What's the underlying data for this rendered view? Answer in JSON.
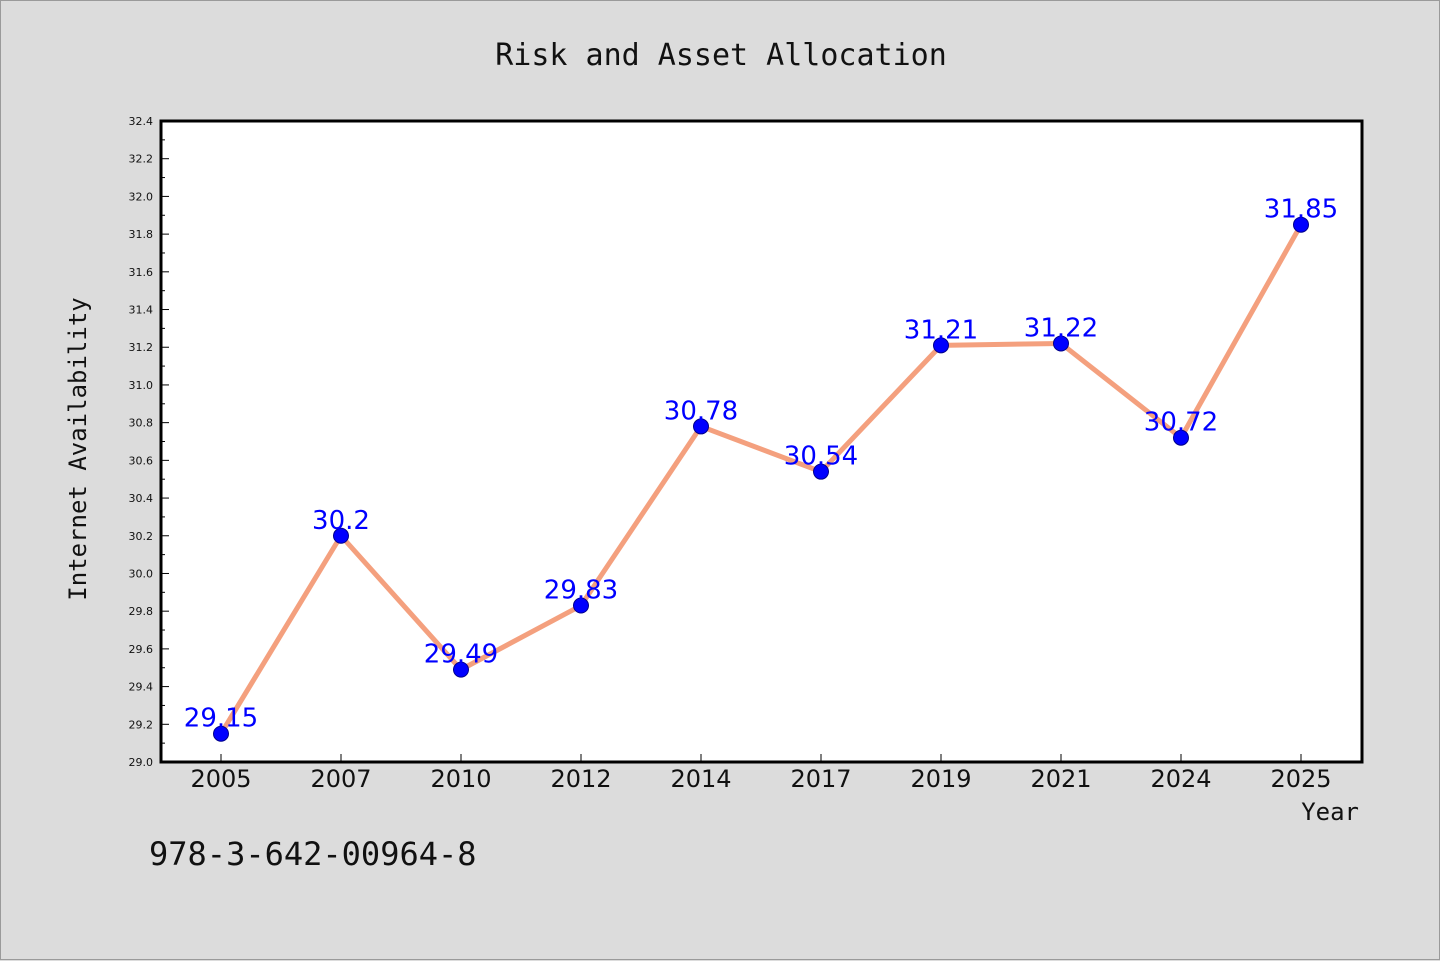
{
  "footer_text": "978-3-642-00964-8",
  "colors": {
    "background": "#dcdcdc",
    "plot_area": "#ffffff",
    "line": "#f4a07e",
    "marker": "#0000ff",
    "data_label": "#0000ff"
  },
  "chart_data": {
    "type": "line",
    "title": "Risk and Asset Allocation",
    "xlabel": "Year",
    "ylabel": "Internet Availability",
    "categories": [
      "2005",
      "2007",
      "2010",
      "2012",
      "2014",
      "2017",
      "2019",
      "2021",
      "2024",
      "2025"
    ],
    "series": [
      {
        "values": [
          29.15,
          30.2,
          29.49,
          29.83,
          30.78,
          30.54,
          31.21,
          31.22,
          30.72,
          31.85
        ],
        "labels": [
          "29.15",
          "30.2",
          "29.49",
          "29.83",
          "30.78",
          "30.54",
          "31.21",
          "31.22",
          "30.72",
          "31.85"
        ]
      }
    ],
    "ylim": [
      29.0,
      32.4
    ],
    "yticks": [
      "29.0",
      "29.2",
      "29.4",
      "29.6",
      "29.8",
      "30.0",
      "30.2",
      "30.4",
      "30.6",
      "30.8",
      "31.0",
      "31.2",
      "31.4",
      "31.6",
      "31.8",
      "32.0",
      "32.2",
      "32.4"
    ],
    "grid": false,
    "legend": false
  }
}
